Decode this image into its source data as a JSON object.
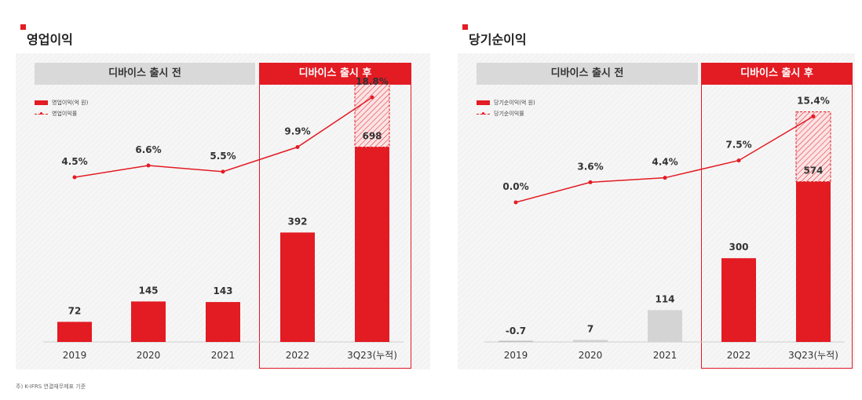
{
  "footnote": "주) K-IFRS 연결재무제표 기준",
  "colors": {
    "accent": "#e31b23",
    "neutral": "#d9d9d9",
    "hatch": "#e31b23"
  },
  "chart_data": [
    {
      "type": "bar",
      "title": "영업이익",
      "period_labels": {
        "before": "디바이스 출시 전",
        "after": "디바이스 출시 후"
      },
      "legend": {
        "bar": "영업이익(억 원)",
        "line": "영업이익률"
      },
      "categories": [
        "2019",
        "2020",
        "2021",
        "2022",
        "3Q23(누적)"
      ],
      "series": [
        {
          "name": "영업이익(억 원)",
          "kind": "bar",
          "values": [
            72,
            145,
            143,
            392,
            698
          ],
          "labels": [
            "72",
            "145",
            "143",
            "392",
            "698"
          ],
          "bar_colors": [
            "#e31b23",
            "#e31b23",
            "#e31b23",
            "#e31b23",
            "#e31b23"
          ]
        },
        {
          "name": "영업이익률",
          "kind": "line",
          "values": [
            4.5,
            6.6,
            5.5,
            9.9,
            18.8
          ],
          "labels": [
            "4.5%",
            "6.6%",
            "5.5%",
            "9.9%",
            "18.8%"
          ]
        }
      ],
      "last_bar_hatched_extension": 225,
      "bar_ylim": [
        0,
        1000
      ],
      "line_ylim": [
        -25,
        25
      ]
    },
    {
      "type": "bar",
      "title": "당기순이익",
      "period_labels": {
        "before": "디바이스 출시 전",
        "after": "디바이스 출시 후"
      },
      "legend": {
        "bar": "당기순이익(억 원)",
        "line": "당기순이익률"
      },
      "categories": [
        "2019",
        "2020",
        "2021",
        "2022",
        "3Q23(누적)"
      ],
      "series": [
        {
          "name": "당기순이익(억 원)",
          "kind": "bar",
          "values": [
            -0.7,
            7,
            114,
            300,
            574
          ],
          "labels": [
            "-0.7",
            "7",
            "114",
            "300",
            "574"
          ],
          "bar_colors": [
            "#bfbfbf",
            "#d0d0d0",
            "#d4d4d4",
            "#e31b23",
            "#e31b23"
          ]
        },
        {
          "name": "당기순이익률",
          "kind": "line",
          "values": [
            0.0,
            3.6,
            4.4,
            7.5,
            15.4
          ],
          "labels": [
            "0.0%",
            "3.6%",
            "4.4%",
            "7.5%",
            "15.4%"
          ]
        }
      ],
      "last_bar_hatched_extension": 250,
      "bar_ylim": [
        0,
        1000
      ],
      "line_ylim": [
        -25,
        25
      ]
    }
  ]
}
